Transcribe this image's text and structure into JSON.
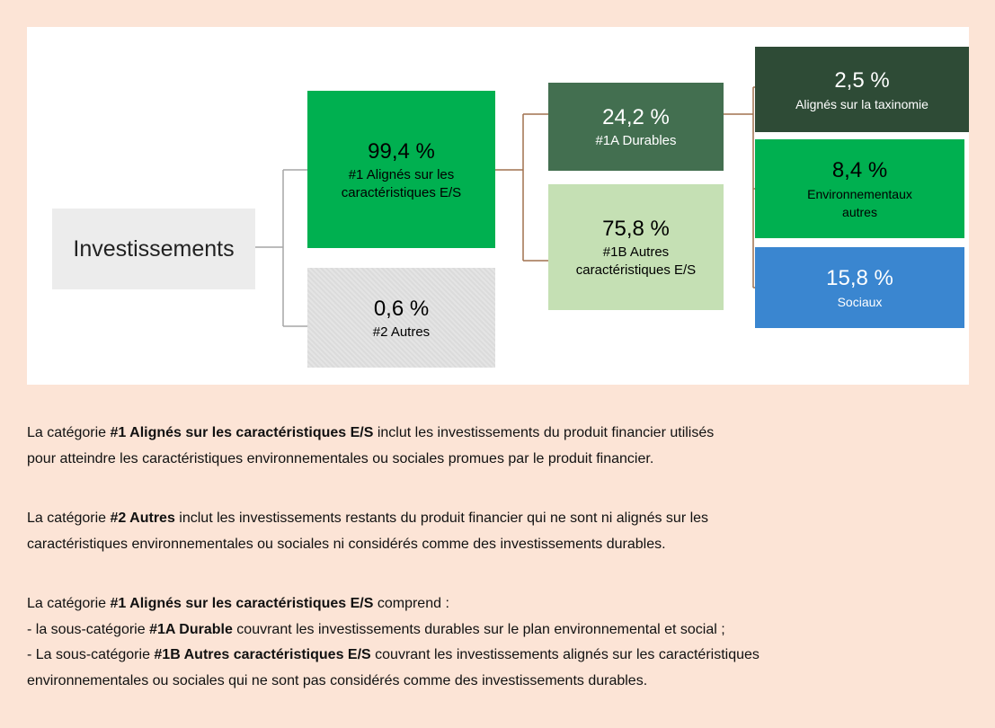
{
  "diagram": {
    "root": {
      "label": "Investissements"
    },
    "nodes": [
      {
        "value": "99,4 %",
        "label": [
          "#1 Alignés sur les",
          "caractéristiques E/S"
        ],
        "color": "#00b050",
        "text_color": "#000000"
      },
      {
        "value": "0,6 %",
        "label": [
          "#2 Autres"
        ],
        "color": "#e4e4e4",
        "text_color": "#000000"
      },
      {
        "value": "24,2 %",
        "label": [
          "#1A Durables"
        ],
        "color": "#436f50",
        "text_color": "#ffffff"
      },
      {
        "value": "75,8 %",
        "label": [
          "#1B Autres",
          "caractéristiques E/S"
        ],
        "color": "#c5e0b4",
        "text_color": "#000000"
      },
      {
        "value": "2,5 %",
        "label": [
          "Alignés sur la taxinomie"
        ],
        "color": "#2e4b36",
        "text_color": "#ffffff"
      },
      {
        "value": "8,4 %",
        "label": [
          "Environnementaux",
          "autres"
        ],
        "color": "#00b050",
        "text_color": "#000000"
      },
      {
        "value": "15,8 %",
        "label": [
          "Sociaux"
        ],
        "color": "#3a86d0",
        "text_color": "#ffffff"
      }
    ]
  },
  "paragraphs": [
    [
      [
        {
          "text": "La catégorie "
        },
        {
          "text": "#1 Alignés sur les caractéristiques E/S",
          "bold": true
        },
        {
          "text": " inclut les investissements du produit financier utilisés"
        }
      ],
      [
        {
          "text": "pour atteindre les caractéristiques environnementales ou sociales promues par le produit financier."
        }
      ]
    ],
    [
      [
        {
          "text": "La catégorie "
        },
        {
          "text": "#2 Autres",
          "bold": true
        },
        {
          "text": " inclut les investissements restants du produit financier qui ne sont ni alignés sur les"
        }
      ],
      [
        {
          "text": "caractéristiques environnementales ou sociales ni considérés comme des investissements durables."
        }
      ]
    ],
    [
      [
        {
          "text": "La catégorie "
        },
        {
          "text": "#1 Alignés sur les caractéristiques E/S",
          "bold": true
        },
        {
          "text": " comprend :"
        }
      ],
      [
        {
          "text": "- la sous-catégorie "
        },
        {
          "text": "#1A Durable",
          "bold": true
        },
        {
          "text": " couvrant les investissements durables sur le plan environnemental et social ;"
        }
      ],
      [
        {
          "text": "- La sous-catégorie "
        },
        {
          "text": "#1B Autres caractéristiques E/S",
          "bold": true
        },
        {
          "text": " couvrant les investissements alignés sur les caractéristiques"
        }
      ],
      [
        {
          "text": "environnementales ou sociales qui ne sont pas considérés comme des investissements durables."
        }
      ]
    ]
  ]
}
